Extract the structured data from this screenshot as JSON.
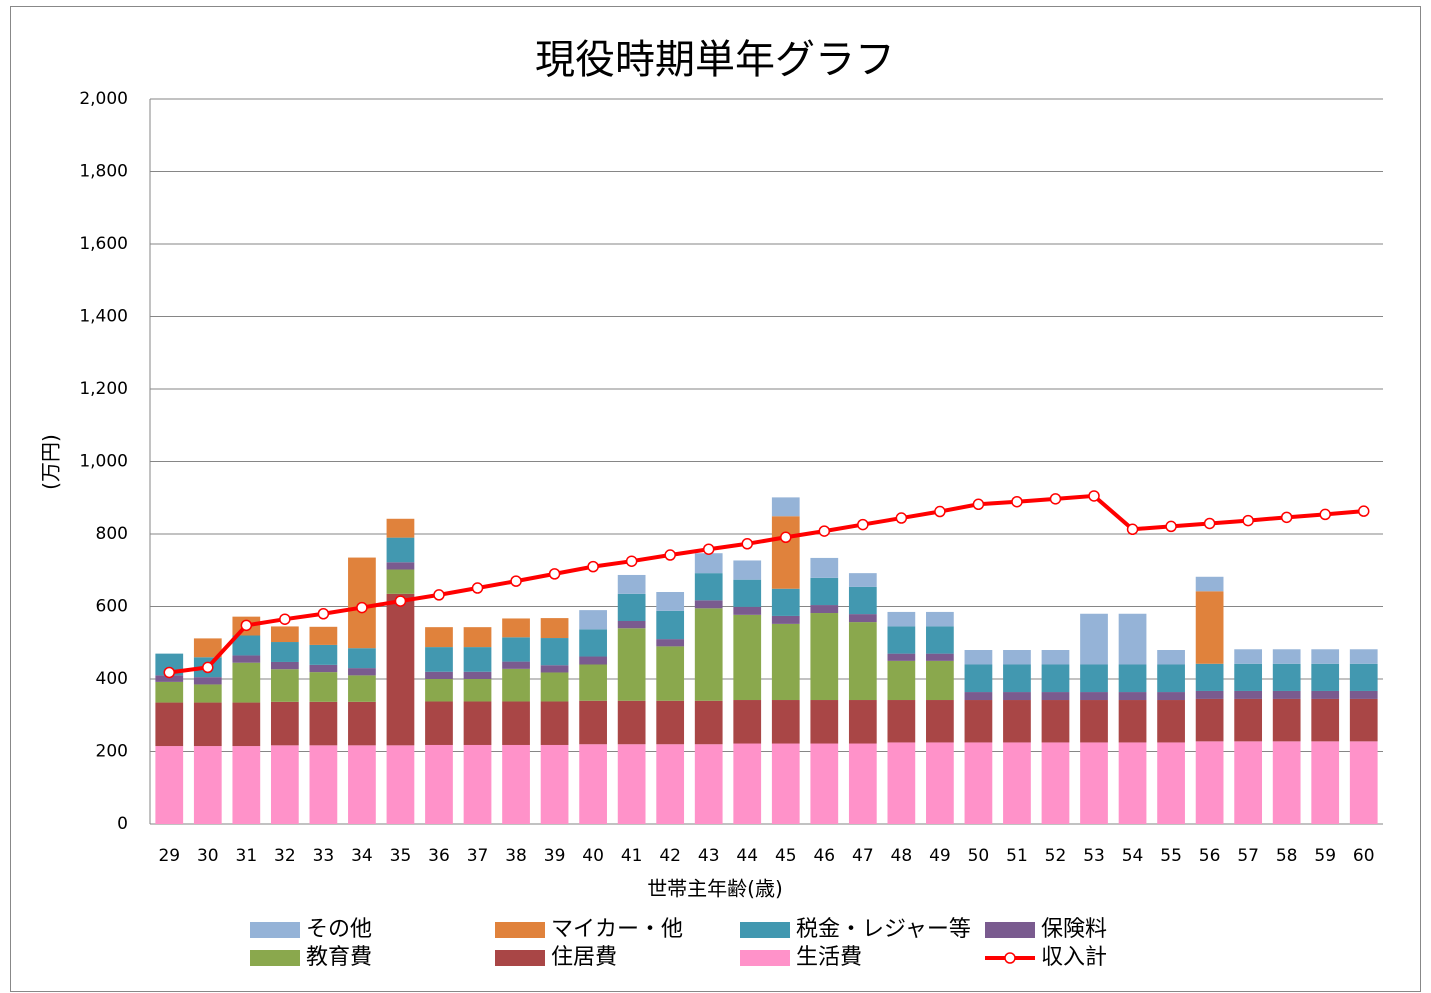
{
  "chart_data": {
    "type": "bar",
    "stacked": true,
    "title": "現役時期単年グラフ",
    "x_label": "世帯主年齢(歳)",
    "y_label": "(万円)",
    "categories": [
      "29",
      "30",
      "31",
      "32",
      "33",
      "34",
      "35",
      "36",
      "37",
      "38",
      "39",
      "40",
      "41",
      "42",
      "43",
      "44",
      "45",
      "46",
      "47",
      "48",
      "49",
      "50",
      "51",
      "52",
      "53",
      "54",
      "55",
      "56",
      "57",
      "58",
      "59",
      "60"
    ],
    "ylim": [
      0,
      2000
    ],
    "yticks": [
      0,
      200,
      400,
      600,
      800,
      {
        "value": 1000,
        "label": "1,000"
      },
      {
        "value": 1200,
        "label": "1,200"
      },
      {
        "value": 1400,
        "label": "1,400"
      },
      {
        "value": 1600,
        "label": "1,600"
      },
      {
        "value": 1800,
        "label": "1,800"
      },
      {
        "value": 2000,
        "label": "2,000"
      }
    ],
    "grid": true,
    "series": [
      {
        "name": "その他",
        "color": "#95b3d7",
        "values": [
          0,
          0,
          0,
          0,
          0,
          0,
          0,
          0,
          0,
          0,
          0,
          53,
          52,
          52,
          55,
          53,
          52,
          55,
          38,
          40,
          40,
          40,
          40,
          40,
          140,
          140,
          40,
          40,
          40,
          40,
          40,
          40
        ]
      },
      {
        "name": "マイカー・他",
        "color": "#e0823c",
        "values": [
          0,
          52,
          52,
          43,
          50,
          250,
          52,
          55,
          55,
          52,
          55,
          0,
          0,
          0,
          0,
          0,
          200,
          0,
          0,
          0,
          0,
          0,
          0,
          0,
          0,
          0,
          0,
          200,
          0,
          0,
          0,
          0
        ]
      },
      {
        "name": "税金・レジャー等",
        "color": "#4298b0",
        "values": [
          60,
          55,
          55,
          55,
          55,
          55,
          68,
          68,
          68,
          67,
          75,
          75,
          75,
          78,
          75,
          75,
          75,
          75,
          75,
          75,
          75,
          76,
          76,
          76,
          76,
          76,
          76,
          75,
          75,
          75,
          75,
          75
        ]
      },
      {
        "name": "保険料",
        "color": "#7a5b8f",
        "values": [
          18,
          20,
          20,
          20,
          20,
          20,
          20,
          20,
          20,
          20,
          20,
          22,
          20,
          20,
          22,
          22,
          22,
          22,
          22,
          20,
          20,
          22,
          22,
          22,
          22,
          22,
          22,
          22,
          22,
          22,
          22,
          22
        ]
      },
      {
        "name": "教育費",
        "color": "#8aa84d",
        "values": [
          57,
          50,
          110,
          90,
          82,
          73,
          67,
          62,
          62,
          90,
          80,
          100,
          200,
          150,
          255,
          235,
          210,
          240,
          215,
          108,
          108,
          0,
          0,
          0,
          0,
          0,
          0,
          0,
          0,
          0,
          0,
          0
        ]
      },
      {
        "name": "住居費",
        "color": "#a94646",
        "values": [
          120,
          120,
          120,
          120,
          120,
          120,
          418,
          120,
          120,
          120,
          120,
          120,
          120,
          120,
          120,
          120,
          120,
          120,
          120,
          117,
          117,
          117,
          117,
          117,
          117,
          117,
          117,
          117,
          117,
          117,
          117,
          117
        ]
      },
      {
        "name": "生活費",
        "color": "#ff92c9",
        "values": [
          215,
          215,
          215,
          217,
          217,
          217,
          217,
          218,
          218,
          218,
          218,
          220,
          220,
          220,
          220,
          222,
          222,
          222,
          222,
          225,
          225,
          225,
          225,
          225,
          225,
          225,
          225,
          228,
          228,
          228,
          228,
          228
        ]
      },
      {
        "name": "収入計",
        "color": "#ff0000",
        "type": "line",
        "values": [
          418,
          432,
          548,
          565,
          580,
          597,
          615,
          632,
          651,
          670,
          690,
          710,
          725,
          742,
          758,
          773,
          791,
          808,
          826,
          844,
          862,
          882,
          889,
          897,
          905,
          813,
          821,
          829,
          837,
          846,
          854,
          863
        ]
      }
    ]
  }
}
